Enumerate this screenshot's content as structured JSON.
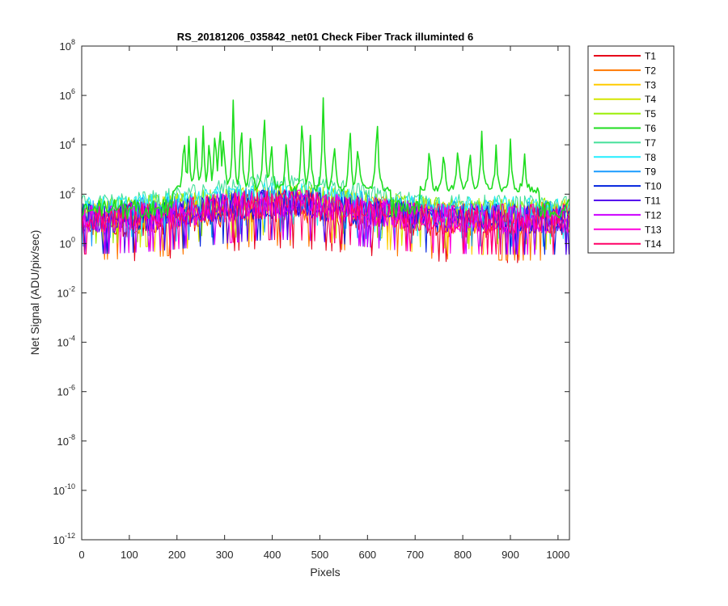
{
  "chart_data": {
    "type": "line",
    "title": "RS_20181206_035842_net01   Check Fiber     Track illuminted 6",
    "xlabel": "Pixels",
    "ylabel": "Net Signal (ADU/pix/sec)",
    "xlim": [
      0,
      1024
    ],
    "ylog_lim": [
      -12,
      8
    ],
    "xticks": [
      0,
      100,
      200,
      300,
      400,
      500,
      600,
      700,
      800,
      900,
      1000
    ],
    "yticks": [
      {
        "base": "10",
        "exp": "8"
      },
      {
        "base": "10",
        "exp": "6"
      },
      {
        "base": "10",
        "exp": "4"
      },
      {
        "base": "10",
        "exp": "2"
      },
      {
        "base": "10",
        "exp": "0"
      },
      {
        "base": "10",
        "exp": "-2"
      },
      {
        "base": "10",
        "exp": "-4"
      },
      {
        "base": "10",
        "exp": "-6"
      },
      {
        "base": "10",
        "exp": "-8"
      },
      {
        "base": "10",
        "exp": "-10"
      },
      {
        "base": "10",
        "exp": "-12"
      }
    ],
    "legend_position": "outside-top-right",
    "series": [
      {
        "name": "T1",
        "color": "#e6001a",
        "baseline_log": 0.9,
        "noise_log": 0.7
      },
      {
        "name": "T2",
        "color": "#ff7700",
        "baseline_log": 1.0,
        "noise_log": 0.7
      },
      {
        "name": "T3",
        "color": "#ffcc00",
        "baseline_log": 1.1,
        "noise_log": 0.65
      },
      {
        "name": "T4",
        "color": "#d4e600",
        "baseline_log": 1.2,
        "noise_log": 0.6
      },
      {
        "name": "T5",
        "color": "#99ee00",
        "baseline_log": 1.3,
        "noise_log": 0.55
      },
      {
        "name": "T6",
        "color": "#1fdd1f",
        "baseline_log": 2.2,
        "noise_log": 0.25,
        "peaks_x": [
          215,
          225,
          240,
          255,
          268,
          280,
          290,
          298,
          318,
          335,
          355,
          383,
          398,
          430,
          463,
          480,
          507,
          530,
          563,
          580,
          620,
          730,
          760,
          790,
          815,
          840,
          870,
          900,
          930
        ],
        "peaks_log": [
          4.6,
          4.2,
          4.3,
          4.8,
          4.5,
          5.0,
          5.3,
          4.7,
          5.8,
          5.4,
          4.9,
          5.9,
          4.4,
          4.8,
          5.6,
          4.5,
          6.0,
          4.6,
          5.1,
          4.4,
          5.6,
          4.2,
          3.9,
          4.4,
          4.1,
          4.6,
          3.9,
          4.1,
          3.6
        ]
      },
      {
        "name": "T7",
        "color": "#44e09a",
        "baseline_log": 1.6,
        "noise_log": 0.35
      },
      {
        "name": "T8",
        "color": "#22eeff",
        "baseline_log": 1.4,
        "noise_log": 0.5
      },
      {
        "name": "T9",
        "color": "#1a9cff",
        "baseline_log": 1.2,
        "noise_log": 0.55
      },
      {
        "name": "T10",
        "color": "#0022dd",
        "baseline_log": 1.0,
        "noise_log": 0.6
      },
      {
        "name": "T11",
        "color": "#5500ee",
        "baseline_log": 1.0,
        "noise_log": 0.6
      },
      {
        "name": "T12",
        "color": "#cc00ff",
        "baseline_log": 1.0,
        "noise_log": 0.6
      },
      {
        "name": "T13",
        "color": "#ff00dd",
        "baseline_log": 1.0,
        "noise_log": 0.6
      },
      {
        "name": "T14",
        "color": "#ff0066",
        "baseline_log": 1.0,
        "noise_log": 0.6
      }
    ]
  }
}
